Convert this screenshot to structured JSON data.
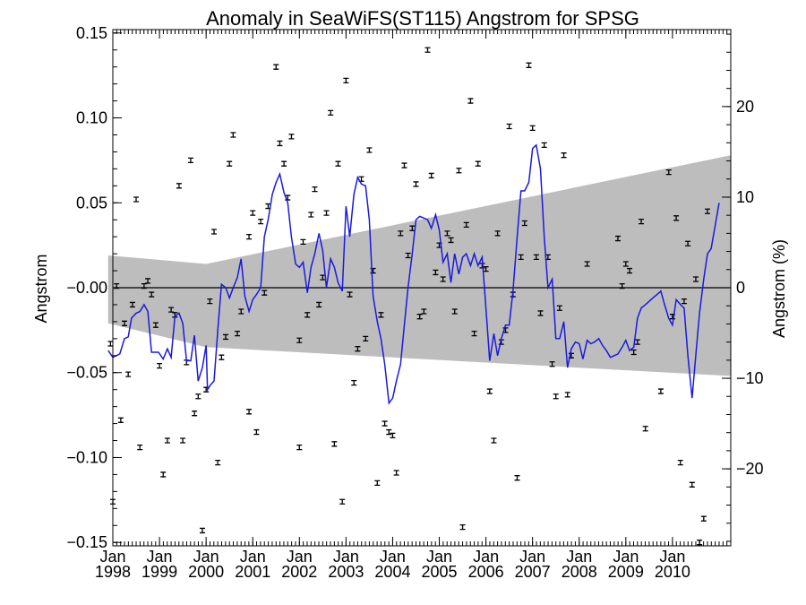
{
  "chart_data": {
    "type": "scatter",
    "title": "Anomaly in SeaWiFS(ST115) Angstrom for SPSG",
    "ylabel": "Angstrom",
    "ylabel_right": "Angstrom (%)",
    "ylim": [
      -0.152,
      0.152
    ],
    "ylim_right": [
      -28.5,
      28.5
    ],
    "xlim": [
      1998.0,
      2011.25
    ],
    "y_ticks": [
      {
        "value": 0.15,
        "label": "0.15"
      },
      {
        "value": 0.1,
        "label": "0.10"
      },
      {
        "value": 0.05,
        "label": "0.05"
      },
      {
        "value": 0.0,
        "label": "-0.00"
      },
      {
        "value": -0.05,
        "label": "-0.05"
      },
      {
        "value": -0.1,
        "label": "-0.10"
      },
      {
        "value": -0.15,
        "label": "-0.15"
      }
    ],
    "y_right_ticks": [
      {
        "value": 20,
        "label": "20"
      },
      {
        "value": 10,
        "label": "10"
      },
      {
        "value": 0,
        "label": "0"
      },
      {
        "value": -10,
        "label": "-10"
      },
      {
        "value": -20,
        "label": "-20"
      }
    ],
    "x_ticks": [
      {
        "value": 1998,
        "line1": "Jan",
        "line2": "1998"
      },
      {
        "value": 1999,
        "line1": "Jan",
        "line2": "1999"
      },
      {
        "value": 2000,
        "line1": "Jan",
        "line2": "2000"
      },
      {
        "value": 2001,
        "line1": "Jan",
        "line2": "2001"
      },
      {
        "value": 2002,
        "line1": "Jan",
        "line2": "2002"
      },
      {
        "value": 2003,
        "line1": "Jan",
        "line2": "2003"
      },
      {
        "value": 2004,
        "line1": "Jan",
        "line2": "2004"
      },
      {
        "value": 2005,
        "line1": "Jan",
        "line2": "2005"
      },
      {
        "value": 2006,
        "line1": "Jan",
        "line2": "2006"
      },
      {
        "value": 2007,
        "line1": "Jan",
        "line2": "2007"
      },
      {
        "value": 2008,
        "line1": "Jan",
        "line2": "2008"
      },
      {
        "value": 2009,
        "line1": "Jan",
        "line2": "2009"
      },
      {
        "value": 2010,
        "line1": "Jan",
        "line2": "2010"
      }
    ],
    "band": {
      "upper": [
        [
          1997.9,
          0.019
        ],
        [
          2000.0,
          0.014
        ],
        [
          2011.25,
          0.078
        ]
      ],
      "lower": [
        [
          1997.9,
          -0.021
        ],
        [
          2000.0,
          -0.035
        ],
        [
          2011.25,
          -0.052
        ]
      ]
    },
    "band_color": "#bdbdbd",
    "line_color": "#1a1adf",
    "zero_line": true,
    "points": [
      [
        1997.95,
        -0.033
      ],
      [
        1998.0,
        -0.126
      ],
      [
        1998.08,
        0.001
      ],
      [
        1998.17,
        -0.078
      ],
      [
        1998.25,
        -0.021
      ],
      [
        1998.33,
        -0.051
      ],
      [
        1998.42,
        -0.01
      ],
      [
        1998.5,
        0.052
      ],
      [
        1998.58,
        -0.094
      ],
      [
        1998.67,
        0.001
      ],
      [
        1998.75,
        0.004
      ],
      [
        1998.83,
        -0.004
      ],
      [
        1998.92,
        -0.022
      ],
      [
        1999.0,
        -0.046
      ],
      [
        1999.08,
        -0.11
      ],
      [
        1999.17,
        -0.09
      ],
      [
        1999.25,
        -0.013
      ],
      [
        1999.33,
        -0.016
      ],
      [
        1999.42,
        0.06
      ],
      [
        1999.5,
        -0.09
      ],
      [
        1999.58,
        -0.044
      ],
      [
        1999.67,
        0.075
      ],
      [
        1999.75,
        -0.074
      ],
      [
        1999.83,
        -0.064
      ],
      [
        1999.92,
        -0.143
      ],
      [
        2000.0,
        -0.06
      ],
      [
        2000.08,
        -0.008
      ],
      [
        2000.17,
        0.033
      ],
      [
        2000.25,
        -0.103
      ],
      [
        2000.33,
        -0.041
      ],
      [
        2000.42,
        -0.029
      ],
      [
        2000.5,
        0.073
      ],
      [
        2000.58,
        0.09
      ],
      [
        2000.67,
        -0.027
      ],
      [
        2000.75,
        -0.014
      ],
      [
        2000.92,
        -0.073
      ],
      [
        2000.92,
        0.03
      ],
      [
        2001.0,
        0.044
      ],
      [
        2001.08,
        -0.085
      ],
      [
        2001.17,
        0.039
      ],
      [
        2001.25,
        -0.003
      ],
      [
        2001.33,
        0.048
      ],
      [
        2001.5,
        0.13
      ],
      [
        2001.58,
        0.085
      ],
      [
        2001.67,
        0.073
      ],
      [
        2001.75,
        0.053
      ],
      [
        2001.83,
        0.089
      ],
      [
        2002.0,
        -0.094
      ],
      [
        2002.0,
        -0.031
      ],
      [
        2002.08,
        0.027
      ],
      [
        2002.17,
        -0.016
      ],
      [
        2002.25,
        0.043
      ],
      [
        2002.33,
        0.058
      ],
      [
        2002.42,
        -0.01
      ],
      [
        2002.5,
        0.006
      ],
      [
        2002.58,
        0.044
      ],
      [
        2002.67,
        0.103
      ],
      [
        2002.75,
        -0.092
      ],
      [
        2002.83,
        0.073
      ],
      [
        2002.92,
        -0.126
      ],
      [
        2003.0,
        0.122
      ],
      [
        2003.08,
        -0.004
      ],
      [
        2003.17,
        -0.056
      ],
      [
        2003.25,
        -0.036
      ],
      [
        2003.33,
        0.064
      ],
      [
        2003.42,
        -0.03
      ],
      [
        2003.5,
        0.081
      ],
      [
        2003.58,
        0.01
      ],
      [
        2003.67,
        -0.115
      ],
      [
        2003.75,
        -0.016
      ],
      [
        2003.83,
        -0.08
      ],
      [
        2003.92,
        -0.085
      ],
      [
        2004.0,
        -0.087
      ],
      [
        2004.08,
        -0.109
      ],
      [
        2004.17,
        0.032
      ],
      [
        2004.25,
        0.072
      ],
      [
        2004.33,
        0.019
      ],
      [
        2004.42,
        0.035
      ],
      [
        2004.5,
        0.061
      ],
      [
        2004.58,
        -0.017
      ],
      [
        2004.67,
        -0.014
      ],
      [
        2004.75,
        0.14
      ],
      [
        2004.83,
        0.066
      ],
      [
        2004.92,
        0.009
      ],
      [
        2005.0,
        0.025
      ],
      [
        2005.08,
        0.005
      ],
      [
        2005.17,
        0.032
      ],
      [
        2005.25,
        0.028
      ],
      [
        2005.33,
        -0.014
      ],
      [
        2005.42,
        0.069
      ],
      [
        2005.5,
        -0.141
      ],
      [
        2005.58,
        0.037
      ],
      [
        2005.67,
        0.11
      ],
      [
        2005.75,
        -0.027
      ],
      [
        2005.83,
        0.073
      ],
      [
        2005.92,
        0.013
      ],
      [
        2006.0,
        0.011
      ],
      [
        2006.08,
        -0.061
      ],
      [
        2006.17,
        -0.09
      ],
      [
        2006.25,
        0.032
      ],
      [
        2006.33,
        -0.032
      ],
      [
        2006.42,
        -0.025
      ],
      [
        2006.5,
        0.095
      ],
      [
        2006.58,
        -0.004
      ],
      [
        2006.67,
        -0.112
      ],
      [
        2006.75,
        0.018
      ],
      [
        2006.83,
        0.038
      ],
      [
        2006.92,
        0.131
      ],
      [
        2007.0,
        0.094
      ],
      [
        2007.08,
        0.018
      ],
      [
        2007.17,
        -0.015
      ],
      [
        2007.25,
        0.084
      ],
      [
        2007.33,
        0.018
      ],
      [
        2007.42,
        -0.045
      ],
      [
        2007.5,
        -0.064
      ],
      [
        2007.58,
        -0.012
      ],
      [
        2007.67,
        0.078
      ],
      [
        2007.75,
        -0.063
      ],
      [
        2007.83,
        -0.04
      ],
      [
        2008.17,
        0.014
      ],
      [
        2008.83,
        0.029
      ],
      [
        2008.92,
        0.001
      ],
      [
        2009.0,
        0.014
      ],
      [
        2009.08,
        0.01
      ],
      [
        2009.17,
        -0.038
      ],
      [
        2009.25,
        -0.032
      ],
      [
        2009.33,
        0.039
      ],
      [
        2009.42,
        -0.083
      ],
      [
        2009.75,
        -0.061
      ],
      [
        2009.92,
        0.068
      ],
      [
        2010.0,
        -0.017
      ],
      [
        2010.08,
        0.041
      ],
      [
        2010.17,
        -0.103
      ],
      [
        2010.25,
        -0.008
      ],
      [
        2010.33,
        0.026
      ],
      [
        2010.42,
        -0.116
      ],
      [
        2010.5,
        0.005
      ],
      [
        2010.58,
        -0.15
      ],
      [
        2010.67,
        -0.136
      ],
      [
        2010.75,
        0.045
      ]
    ],
    "line": [
      [
        1997.9,
        -0.037
      ],
      [
        1998.0,
        -0.041
      ],
      [
        1998.15,
        -0.039
      ],
      [
        1998.25,
        -0.03
      ],
      [
        1998.33,
        -0.029
      ],
      [
        1998.4,
        -0.018
      ],
      [
        1998.5,
        -0.015
      ],
      [
        1998.58,
        -0.014
      ],
      [
        1998.67,
        -0.01
      ],
      [
        1998.75,
        -0.014
      ],
      [
        1998.83,
        -0.038
      ],
      [
        1998.9,
        -0.038
      ],
      [
        1998.98,
        -0.038
      ],
      [
        1999.08,
        -0.042
      ],
      [
        1999.17,
        -0.036
      ],
      [
        1999.25,
        -0.041
      ],
      [
        1999.33,
        -0.017
      ],
      [
        1999.42,
        -0.015
      ],
      [
        1999.5,
        -0.021
      ],
      [
        1999.58,
        -0.043
      ],
      [
        1999.67,
        -0.043
      ],
      [
        1999.75,
        -0.028
      ],
      [
        1999.83,
        -0.055
      ],
      [
        1999.92,
        -0.047
      ],
      [
        2000.0,
        -0.034
      ],
      [
        2000.03,
        -0.06
      ],
      [
        2000.1,
        -0.057
      ],
      [
        2000.17,
        -0.055
      ],
      [
        2000.25,
        -0.025
      ],
      [
        2000.33,
        0.002
      ],
      [
        2000.42,
        0.0
      ],
      [
        2000.5,
        -0.006
      ],
      [
        2000.58,
        0.0
      ],
      [
        2000.67,
        0.006
      ],
      [
        2000.75,
        0.017
      ],
      [
        2000.83,
        -0.005
      ],
      [
        2000.92,
        -0.014
      ],
      [
        2001.0,
        -0.007
      ],
      [
        2001.08,
        -0.004
      ],
      [
        2001.17,
        0.0
      ],
      [
        2001.25,
        0.03
      ],
      [
        2001.33,
        0.04
      ],
      [
        2001.42,
        0.055
      ],
      [
        2001.5,
        0.062
      ],
      [
        2001.58,
        0.067
      ],
      [
        2001.67,
        0.056
      ],
      [
        2001.75,
        0.05
      ],
      [
        2001.83,
        0.03
      ],
      [
        2001.92,
        0.014
      ],
      [
        2002.0,
        0.012
      ],
      [
        2002.08,
        0.015
      ],
      [
        2002.17,
        -0.003
      ],
      [
        2002.25,
        0.012
      ],
      [
        2002.33,
        0.02
      ],
      [
        2002.42,
        0.032
      ],
      [
        2002.5,
        0.022
      ],
      [
        2002.58,
        0.0
      ],
      [
        2002.67,
        0.017
      ],
      [
        2002.75,
        0.012
      ],
      [
        2002.83,
        0.003
      ],
      [
        2002.92,
        -0.002
      ],
      [
        2003.0,
        0.048
      ],
      [
        2003.08,
        0.03
      ],
      [
        2003.17,
        0.055
      ],
      [
        2003.25,
        0.065
      ],
      [
        2003.33,
        0.061
      ],
      [
        2003.42,
        0.06
      ],
      [
        2003.5,
        0.04
      ],
      [
        2003.58,
        -0.005
      ],
      [
        2003.67,
        -0.02
      ],
      [
        2003.75,
        -0.03
      ],
      [
        2003.83,
        -0.045
      ],
      [
        2003.92,
        -0.068
      ],
      [
        2004.0,
        -0.065
      ],
      [
        2004.08,
        -0.055
      ],
      [
        2004.17,
        -0.045
      ],
      [
        2004.25,
        -0.022
      ],
      [
        2004.33,
        0.0
      ],
      [
        2004.42,
        0.02
      ],
      [
        2004.5,
        0.04
      ],
      [
        2004.58,
        0.042
      ],
      [
        2004.67,
        0.041
      ],
      [
        2004.75,
        0.04
      ],
      [
        2004.83,
        0.035
      ],
      [
        2004.92,
        0.043
      ],
      [
        2005.0,
        0.034
      ],
      [
        2005.08,
        0.015
      ],
      [
        2005.17,
        0.02
      ],
      [
        2005.25,
        0.003
      ],
      [
        2005.33,
        0.02
      ],
      [
        2005.42,
        0.008
      ],
      [
        2005.5,
        0.018
      ],
      [
        2005.58,
        0.02
      ],
      [
        2005.67,
        0.013
      ],
      [
        2005.75,
        0.02
      ],
      [
        2005.83,
        0.013
      ],
      [
        2005.92,
        0.018
      ],
      [
        2006.0,
        -0.012
      ],
      [
        2006.08,
        -0.043
      ],
      [
        2006.17,
        -0.027
      ],
      [
        2006.25,
        -0.04
      ],
      [
        2006.33,
        -0.03
      ],
      [
        2006.42,
        -0.022
      ],
      [
        2006.5,
        -0.022
      ],
      [
        2006.58,
        -0.002
      ],
      [
        2006.67,
        0.03
      ],
      [
        2006.75,
        0.057
      ],
      [
        2006.83,
        0.057
      ],
      [
        2006.92,
        0.062
      ],
      [
        2007.0,
        0.082
      ],
      [
        2007.08,
        0.084
      ],
      [
        2007.17,
        0.07
      ],
      [
        2007.25,
        0.03
      ],
      [
        2007.33,
        0.0
      ],
      [
        2007.42,
        0.005
      ],
      [
        2007.5,
        -0.03
      ],
      [
        2007.58,
        -0.03
      ],
      [
        2007.67,
        -0.02
      ],
      [
        2007.75,
        -0.047
      ],
      [
        2007.83,
        -0.036
      ],
      [
        2007.92,
        -0.032
      ],
      [
        2008.0,
        -0.033
      ],
      [
        2008.08,
        -0.042
      ],
      [
        2008.17,
        -0.031
      ],
      [
        2008.25,
        -0.033
      ],
      [
        2008.33,
        -0.032
      ],
      [
        2008.42,
        -0.03
      ],
      [
        2008.5,
        -0.034
      ],
      [
        2008.58,
        -0.037
      ],
      [
        2008.67,
        -0.041
      ],
      [
        2008.75,
        -0.04
      ],
      [
        2008.83,
        -0.039
      ],
      [
        2008.92,
        -0.035
      ],
      [
        2009.0,
        -0.031
      ],
      [
        2009.08,
        -0.037
      ],
      [
        2009.17,
        -0.035
      ],
      [
        2009.25,
        -0.018
      ],
      [
        2009.33,
        -0.012
      ],
      [
        2009.42,
        -0.01
      ],
      [
        2009.5,
        -0.008
      ],
      [
        2009.58,
        -0.006
      ],
      [
        2009.67,
        -0.004
      ],
      [
        2009.75,
        -0.002
      ],
      [
        2009.83,
        -0.01
      ],
      [
        2009.92,
        -0.018
      ],
      [
        2010.0,
        -0.022
      ],
      [
        2010.08,
        -0.007
      ],
      [
        2010.17,
        -0.01
      ],
      [
        2010.25,
        -0.012
      ],
      [
        2010.33,
        -0.04
      ],
      [
        2010.42,
        -0.065
      ],
      [
        2010.5,
        -0.04
      ],
      [
        2010.58,
        -0.015
      ],
      [
        2010.67,
        0.005
      ],
      [
        2010.75,
        0.02
      ],
      [
        2010.83,
        0.023
      ],
      [
        2011.0,
        0.05
      ]
    ]
  }
}
